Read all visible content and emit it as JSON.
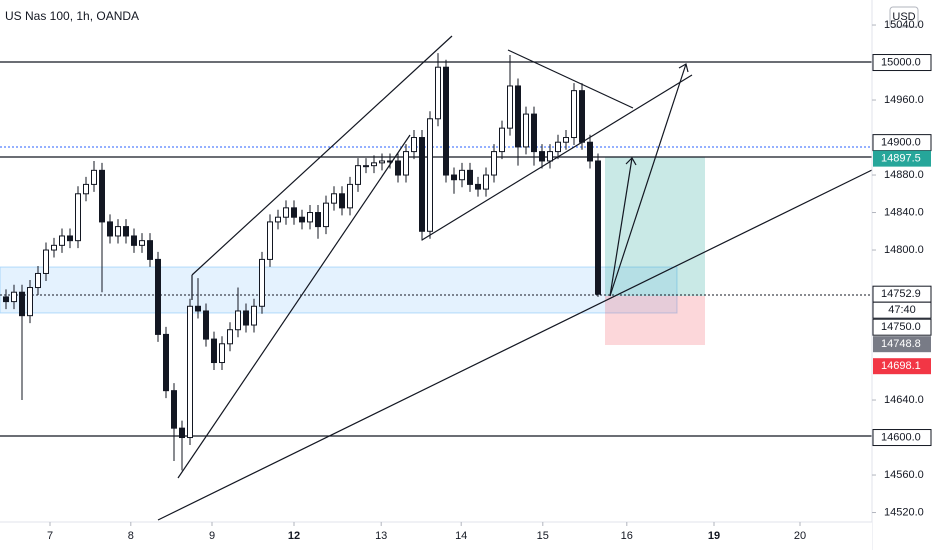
{
  "chart_data": {
    "type": "candlestick",
    "title": "US Nas 100, 1h, OANDA",
    "currency": "USD",
    "countdown": "47:40",
    "color": "#131722",
    "ylim": [
      14509.9,
      15066.7
    ],
    "xlim": [
      -0.75,
      108.25
    ],
    "yticks": [
      15040,
      14960,
      14880,
      14840,
      14800,
      14640,
      14560,
      14520
    ],
    "ytick_labels": [
      "15040.0",
      "14960.0",
      "14880.0",
      "14840.0",
      "14800.0",
      "14640.0",
      "14560.0",
      "14520.0"
    ],
    "xticks": [
      {
        "value": 5.5,
        "label": "7"
      },
      {
        "value": 15.6,
        "label": "8"
      },
      {
        "value": 25.75,
        "label": "9"
      },
      {
        "value": 36,
        "label": "12"
      },
      {
        "value": 46.9,
        "label": "13"
      },
      {
        "value": 56.9,
        "label": "14"
      },
      {
        "value": 67.1,
        "label": "15"
      },
      {
        "value": 77.6,
        "label": "16"
      },
      {
        "value": 88.5,
        "label": "19"
      },
      {
        "value": 99.25,
        "label": "20"
      }
    ],
    "bold_xticks": [
      "12",
      "19"
    ],
    "price_labels": [
      {
        "value": 15000,
        "label": "15000.0",
        "color": "#ffffff"
      },
      {
        "value": 14900,
        "label": "14900.0",
        "color": "#ffffff"
      },
      {
        "value": 14897.5,
        "label": "14897.5",
        "color": "#26a69a"
      },
      {
        "value": 14752.9,
        "label": "14752.9",
        "color": "#ffffff"
      },
      {
        "value": 14750,
        "label": "14750.0",
        "color": "#ffffff"
      },
      {
        "value": 14748.8,
        "label": "14748.8",
        "color": "#787b86"
      },
      {
        "value": 14698.1,
        "label": "14698.1",
        "color": "#f23645"
      },
      {
        "value": 14600,
        "label": "14600.0",
        "color": "#ffffff"
      }
    ],
    "open": [
      14750,
      14745,
      14755,
      14730,
      14760,
      14775,
      14800,
      14805,
      14815,
      14810,
      14860,
      14870,
      14885,
      14830,
      14815,
      14825,
      14815,
      14805,
      14810,
      14790,
      14710,
      14650,
      14610,
      14600,
      14740,
      14735,
      14705,
      14680,
      14700,
      14715,
      14735,
      14720,
      14740,
      14790,
      14830,
      14835,
      14845,
      14835,
      14830,
      14840,
      14825,
      14850,
      14860,
      14845,
      14870,
      14890,
      14890,
      14893,
      14895,
      14895,
      14880,
      14905,
      14920,
      14820,
      14940,
      14995,
      14880,
      14875,
      14885,
      14870,
      14865,
      14880,
      14905,
      14930,
      14975,
      14910,
      14945,
      14905,
      14895,
      14905,
      14915,
      14920,
      14970,
      14915,
      14895
    ],
    "high": [
      14758,
      14763,
      14763,
      14768,
      14783,
      14808,
      14813,
      14823,
      14823,
      14868,
      14878,
      14895,
      14893,
      14838,
      14833,
      14833,
      14823,
      14818,
      14818,
      14798,
      14718,
      14658,
      14618,
      14748,
      14770,
      14743,
      14713,
      14708,
      14723,
      14760,
      14743,
      14748,
      14798,
      14838,
      14843,
      14853,
      14853,
      14843,
      14848,
      14848,
      14858,
      14868,
      14868,
      14878,
      14898,
      14898,
      14901,
      14903,
      14903,
      14903,
      14913,
      14928,
      14928,
      14948,
      15010,
      15003,
      14888,
      14893,
      14893,
      14878,
      14888,
      14913,
      14938,
      15008,
      14983,
      14953,
      14953,
      14913,
      14913,
      14923,
      14928,
      14978,
      14978,
      14923,
      14903
    ],
    "low": [
      14737,
      14737,
      14640,
      14722,
      14752,
      14767,
      14792,
      14797,
      14802,
      14802,
      14852,
      14862,
      14755,
      14807,
      14807,
      14807,
      14797,
      14797,
      14782,
      14702,
      14642,
      14575,
      14565,
      14592,
      14727,
      14697,
      14672,
      14672,
      14692,
      14707,
      14712,
      14712,
      14732,
      14782,
      14822,
      14827,
      14827,
      14822,
      14822,
      14812,
      14817,
      14842,
      14837,
      14837,
      14862,
      14882,
      14882,
      14885,
      14887,
      14872,
      14872,
      14897,
      14810,
      14812,
      14932,
      14872,
      14860,
      14867,
      14862,
      14857,
      14857,
      14872,
      14897,
      14922,
      14890,
      14902,
      14890,
      14887,
      14887,
      14897,
      14907,
      14912,
      14907,
      14887,
      14750
    ],
    "close": [
      14745,
      14755,
      14730,
      14760,
      14775,
      14800,
      14805,
      14815,
      14810,
      14860,
      14870,
      14885,
      14830,
      14815,
      14825,
      14815,
      14805,
      14810,
      14790,
      14710,
      14650,
      14610,
      14600,
      14740,
      14735,
      14705,
      14680,
      14700,
      14715,
      14735,
      14720,
      14740,
      14790,
      14830,
      14835,
      14845,
      14835,
      14830,
      14840,
      14825,
      14850,
      14860,
      14845,
      14870,
      14890,
      14890,
      14893,
      14895,
      14895,
      14880,
      14905,
      14920,
      14820,
      14940,
      14995,
      14880,
      14875,
      14885,
      14870,
      14865,
      14880,
      14905,
      14930,
      14975,
      14910,
      14945,
      14905,
      14895,
      14905,
      14915,
      14920,
      14970,
      14915,
      14895,
      14752.9
    ]
  }
}
